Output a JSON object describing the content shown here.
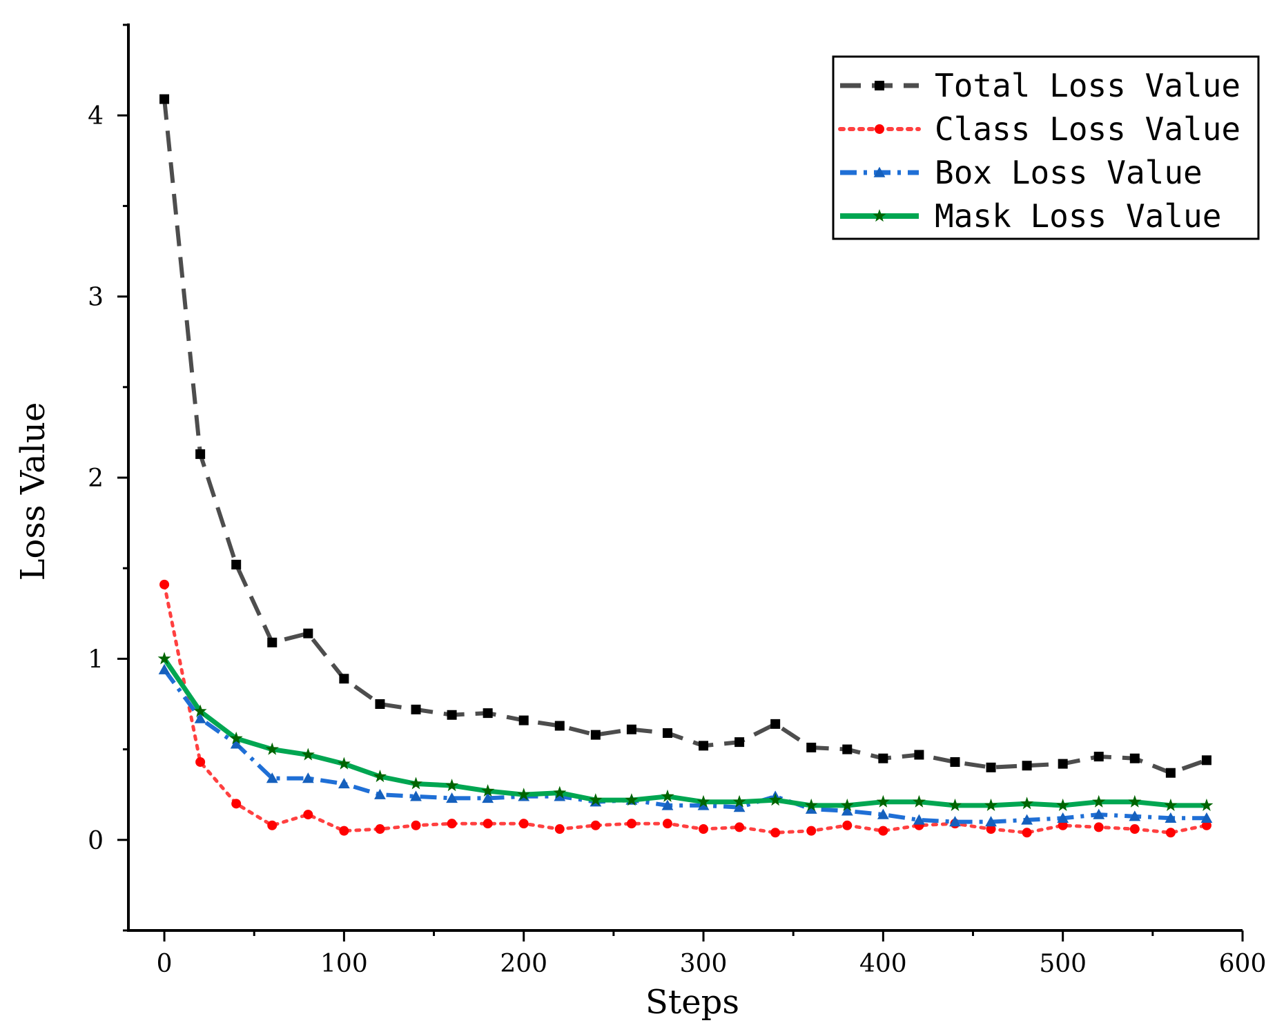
{
  "chart_data": {
    "type": "line",
    "title": "",
    "xlabel": "Steps",
    "ylabel": "Loss Value",
    "xlim": [
      -20,
      600
    ],
    "ylim": [
      -0.5,
      4.5
    ],
    "x_ticks": [
      0,
      100,
      200,
      300,
      400,
      500,
      600
    ],
    "y_ticks": [
      0,
      1,
      2,
      3,
      4
    ],
    "grid": false,
    "legend_position": "top-right",
    "x": [
      0,
      20,
      40,
      60,
      80,
      100,
      120,
      140,
      160,
      180,
      200,
      220,
      240,
      260,
      280,
      300,
      320,
      340,
      360,
      380,
      400,
      420,
      440,
      460,
      480,
      500,
      520,
      540,
      560,
      580
    ],
    "series": [
      {
        "name": "Total Loss Value",
        "color": "#4d4d4d",
        "marker": "square",
        "marker_color": "#000000",
        "dash": "dashed",
        "values": [
          4.09,
          2.13,
          1.52,
          1.09,
          1.14,
          0.89,
          0.75,
          0.72,
          0.69,
          0.7,
          0.66,
          0.63,
          0.58,
          0.61,
          0.59,
          0.52,
          0.54,
          0.64,
          0.51,
          0.5,
          0.45,
          0.47,
          0.43,
          0.4,
          0.41,
          0.42,
          0.46,
          0.45,
          0.37,
          0.44
        ]
      },
      {
        "name": "Class Loss Value",
        "color": "#ff4040",
        "marker": "circle",
        "marker_color": "#ff0000",
        "dash": "dotted",
        "values": [
          1.41,
          0.43,
          0.2,
          0.08,
          0.14,
          0.05,
          0.06,
          0.08,
          0.09,
          0.09,
          0.09,
          0.06,
          0.08,
          0.09,
          0.09,
          0.06,
          0.07,
          0.04,
          0.05,
          0.08,
          0.05,
          0.08,
          0.09,
          0.06,
          0.04,
          0.08,
          0.07,
          0.06,
          0.04,
          0.08
        ]
      },
      {
        "name": "Box Loss Value",
        "color": "#1f6fd6",
        "marker": "triangle",
        "marker_color": "#1560bd",
        "dash": "dash-dot",
        "values": [
          0.94,
          0.67,
          0.53,
          0.34,
          0.34,
          0.31,
          0.25,
          0.24,
          0.23,
          0.23,
          0.24,
          0.24,
          0.21,
          0.22,
          0.19,
          0.19,
          0.18,
          0.24,
          0.17,
          0.16,
          0.14,
          0.11,
          0.1,
          0.1,
          0.11,
          0.12,
          0.14,
          0.13,
          0.12,
          0.12
        ]
      },
      {
        "name": "Mask Loss Value",
        "color": "#00a651",
        "marker": "star",
        "marker_color": "#006400",
        "dash": "solid",
        "values": [
          1.0,
          0.71,
          0.56,
          0.5,
          0.47,
          0.42,
          0.35,
          0.31,
          0.3,
          0.27,
          0.25,
          0.26,
          0.22,
          0.22,
          0.24,
          0.21,
          0.21,
          0.22,
          0.19,
          0.19,
          0.21,
          0.21,
          0.19,
          0.19,
          0.2,
          0.19,
          0.21,
          0.21,
          0.19,
          0.19
        ]
      }
    ]
  }
}
